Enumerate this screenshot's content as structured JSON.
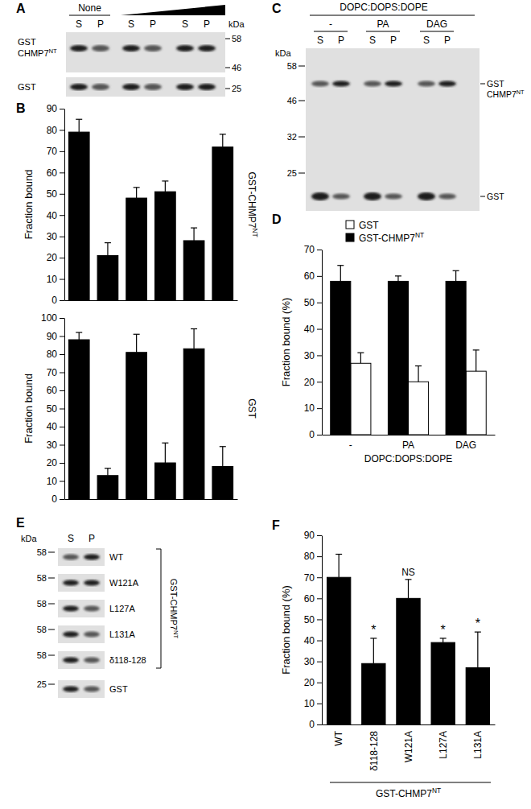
{
  "chart_data": [
    {
      "panel": "B",
      "type": "bar",
      "title": {
        "text": "GST-CHMP7",
        "sup": "NT"
      },
      "ylabel": "Fraction bound",
      "categories": [
        null,
        null,
        null,
        null,
        null,
        null
      ],
      "values": [
        79,
        21,
        48,
        51,
        28,
        72
      ],
      "errors": [
        6,
        6,
        5,
        5,
        6,
        6
      ],
      "color": "#000000",
      "ylim": [
        0,
        90
      ],
      "yticks": [
        0,
        10,
        20,
        30,
        40,
        50,
        60,
        70,
        80,
        90
      ]
    },
    {
      "type": "bar",
      "title": "GST",
      "ylabel": "Fraction bound",
      "categories": [
        null,
        null,
        null,
        null,
        null,
        null
      ],
      "values": [
        88,
        13,
        81,
        20,
        83,
        18
      ],
      "errors": [
        4,
        4,
        10,
        11,
        11,
        11
      ],
      "color": "#000000",
      "ylim": [
        0,
        100
      ],
      "yticks": [
        0,
        10,
        20,
        30,
        40,
        50,
        60,
        70,
        80,
        90,
        100
      ]
    },
    {
      "panel": "D",
      "type": "bar",
      "ylabel": "Fraction bound (%)",
      "xlabel": "DOPC:DOPS:DOPE",
      "categories": [
        "-",
        "PA",
        "DAG"
      ],
      "series": [
        {
          "name": "GST",
          "color": "#ffffff",
          "values": [
            27,
            20,
            24
          ],
          "errors": [
            4,
            6,
            8
          ]
        },
        {
          "name": {
            "text": "GST-CHMP7",
            "sup": "NT"
          },
          "color": "#000000",
          "values": [
            58,
            58,
            58
          ],
          "errors": [
            6,
            2,
            4
          ]
        }
      ],
      "legend": "upper left",
      "ylim": [
        0,
        70
      ],
      "yticks": [
        0,
        10,
        20,
        30,
        40,
        50,
        60,
        70
      ]
    },
    {
      "panel": "F",
      "type": "bar",
      "ylabel": "Fraction bound (%)",
      "xlabel": {
        "text": "GST-CHMP7",
        "sup": "NT"
      },
      "categories": [
        "WT",
        "δ118-128",
        "W121A",
        "L127A",
        "L131A"
      ],
      "values": [
        70,
        29,
        60,
        39,
        27
      ],
      "errors": [
        11,
        12,
        9,
        2,
        17
      ],
      "color": "#000000",
      "ylim": [
        0,
        90
      ],
      "yticks": [
        0,
        10,
        20,
        30,
        40,
        50,
        60,
        70,
        80,
        90
      ],
      "annotations": [
        {
          "x": "δ118-128",
          "text": "*"
        },
        {
          "x": "W121A",
          "text": "NS"
        },
        {
          "x": "L127A",
          "text": "*"
        },
        {
          "x": "L131A",
          "text": "*"
        }
      ]
    }
  ],
  "blots": [
    {
      "panel": "A",
      "header": "None",
      "lanes": [
        "S",
        "P",
        "S",
        "P",
        "S",
        "P"
      ],
      "kda": "kDa",
      "rows": [
        {
          "label": [
            "GST",
            {
              "text": "CHMP7",
              "sup": "NT"
            }
          ],
          "markers": [
            58,
            46
          ]
        },
        {
          "label": [
            "GST"
          ],
          "markers": [
            25
          ]
        }
      ]
    },
    {
      "panel": "C",
      "header": "DOPC:DOPS:DOPE",
      "groups": [
        "-",
        "PA",
        "DAG"
      ],
      "lanes": [
        "S",
        "P",
        "S",
        "P",
        "S",
        "P"
      ],
      "kda": "kDa",
      "markers": [
        58,
        46,
        32,
        25
      ],
      "band_labels": [
        [
          "GST",
          {
            "text": "CHMP7",
            "sup": "NT"
          }
        ],
        [
          "GST"
        ]
      ]
    },
    {
      "panel": "E",
      "kda": "kDa",
      "lanes": [
        "S",
        "P"
      ],
      "rows": [
        {
          "label": "WT",
          "marker": 58
        },
        {
          "label": "W121A",
          "marker": 58
        },
        {
          "label": "L127A",
          "marker": 58
        },
        {
          "label": "L131A",
          "marker": 58
        },
        {
          "label": "δ118-128",
          "marker": 58
        },
        {
          "label": "GST",
          "marker": 25
        }
      ],
      "bracket_label": {
        "text": "GST-CHMP7",
        "sup": "NT"
      }
    }
  ]
}
